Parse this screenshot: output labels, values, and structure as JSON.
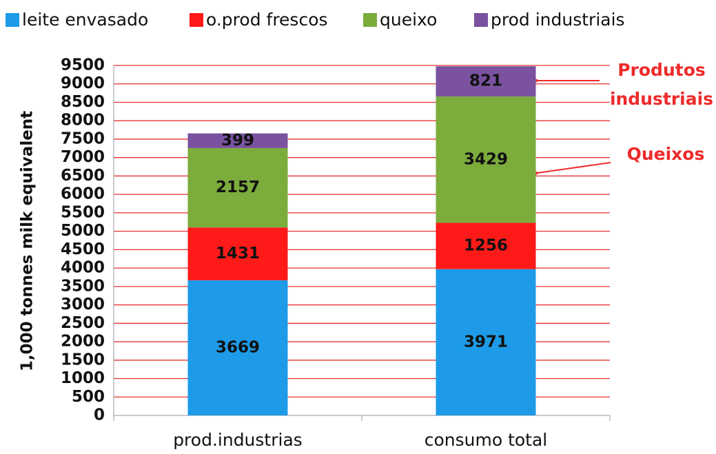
{
  "chart_data": {
    "type": "stacked_bar",
    "categories": [
      "prod.industrias",
      "consumo total"
    ],
    "series": [
      {
        "name": "leite envasado",
        "color": "#1e9be8",
        "values": [
          3669,
          3971
        ]
      },
      {
        "name": "o.prod frescos",
        "color": "#ff1a1a",
        "values": [
          1431,
          1256
        ]
      },
      {
        "name": "queixo",
        "color": "#7cac3c",
        "values": [
          2157,
          3429
        ]
      },
      {
        "name": "prod industriais",
        "color": "#7a52a0",
        "values": [
          399,
          821
        ]
      }
    ],
    "y_label": "1,000 tonnes milk equivalent",
    "ylim": [
      0,
      9500
    ],
    "yticks": [
      0,
      500,
      1000,
      1500,
      2000,
      2500,
      3000,
      3500,
      4000,
      4500,
      5000,
      5500,
      6000,
      6500,
      7000,
      7500,
      8000,
      8500,
      9000,
      9500
    ],
    "grid": true,
    "grid_color": "#e83030",
    "annotations": [
      {
        "text": [
          "Produtos",
          "industriais"
        ]
      },
      {
        "text": [
          "Queixos"
        ]
      }
    ]
  }
}
